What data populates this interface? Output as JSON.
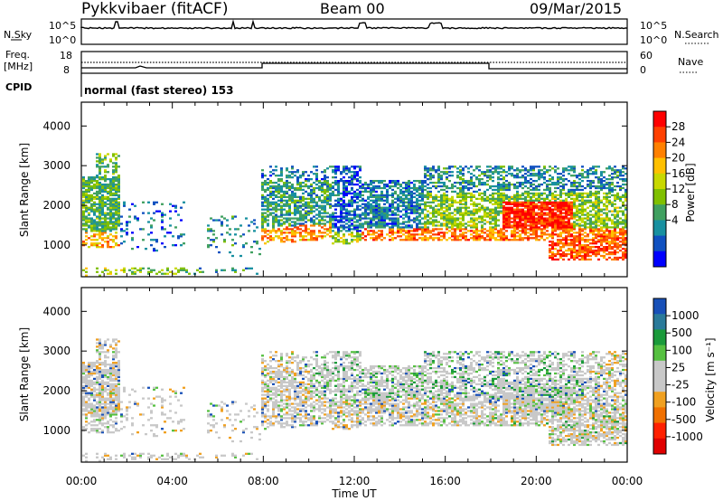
{
  "header": {
    "station": "Pykkvibaer (fitACF)",
    "beam": "Beam 00",
    "date": "09/Mar/2015"
  },
  "panels": {
    "nsky_label": "N.Sky",
    "nsky_ticks": [
      "10^5",
      "10^0"
    ],
    "nsearch_label": "N.Search",
    "nsearch_ticks": [
      "10^5",
      "10^0"
    ],
    "freq_label_1": "Freq.",
    "freq_label_2": "[MHz]",
    "freq_ticks": [
      "18",
      "8"
    ],
    "nave_label": "Nave",
    "nave_ticks": [
      "60",
      "0"
    ],
    "cpid_label": "CPID",
    "cpid_text": "normal (fast stereo) 153"
  },
  "chart_data": [
    {
      "type": "heatmap",
      "name": "power",
      "ylabel": "Slant Range [km]",
      "yticks": [
        "1000",
        "2000",
        "3000",
        "4000"
      ],
      "ylim": [
        200,
        4600
      ],
      "xlim": [
        0,
        24
      ],
      "colorbar_label": "Power [dB]",
      "colorbar_ticks": [
        "28",
        "24",
        "20",
        "16",
        "12",
        "8",
        "4"
      ],
      "colorbar_colors": [
        "#ff0000",
        "#ff4000",
        "#ff8000",
        "#ffc000",
        "#c8d800",
        "#80c000",
        "#40a060",
        "#1890a0",
        "#1050c0",
        "#0000ff"
      ]
    },
    {
      "type": "heatmap",
      "name": "velocity",
      "ylabel": "Slant Range [km]",
      "yticks": [
        "1000",
        "2000",
        "3000",
        "4000"
      ],
      "ylim": [
        200,
        4600
      ],
      "xlim": [
        0,
        24
      ],
      "colorbar_label": "Velocity [m s⁻¹]",
      "colorbar_ticks": [
        "1000",
        "500",
        "100",
        "25",
        "-25",
        "-100",
        "-500",
        "-1000"
      ],
      "colorbar_colors": [
        "#1850b8",
        "#2a7a9a",
        "#1a9a3a",
        "#55c040",
        "#c8c8c8",
        "#c8c8c8",
        "#f0a020",
        "#f07000",
        "#ff2000",
        "#e00000"
      ],
      "xticks": [
        "00:00",
        "04:00",
        "08:00",
        "12:00",
        "16:00",
        "20:00",
        "00:00"
      ],
      "xlabel": "Time UT"
    }
  ]
}
